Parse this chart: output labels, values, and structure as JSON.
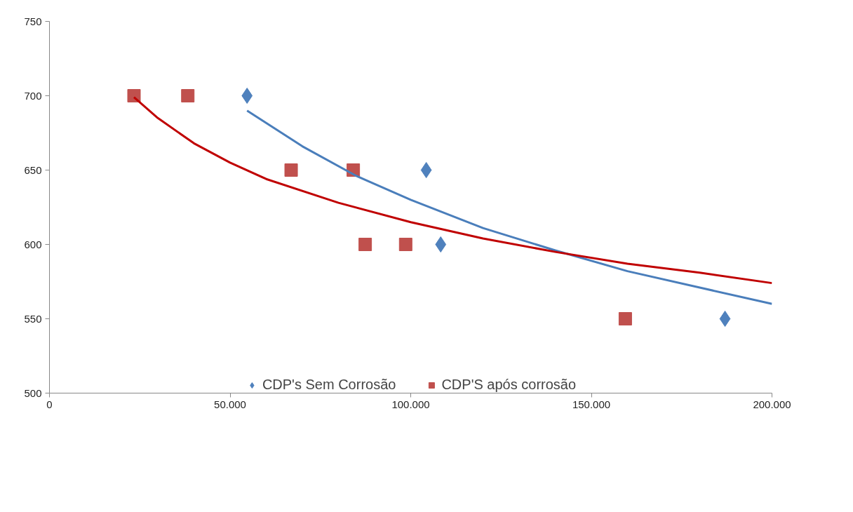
{
  "chart_data": {
    "type": "scatter",
    "xlim": [
      0,
      200000
    ],
    "ylim": [
      500,
      750
    ],
    "xticks": [
      {
        "value": 0,
        "label": "0"
      },
      {
        "value": 50000,
        "label": "50.000"
      },
      {
        "value": 100000,
        "label": "100.000"
      },
      {
        "value": 150000,
        "label": "150.000"
      },
      {
        "value": 200000,
        "label": "200.000"
      }
    ],
    "yticks": [
      500,
      550,
      600,
      650,
      700,
      750
    ],
    "grid": false,
    "legend": "bottom",
    "series": [
      {
        "name": "CDP's Sem Corrosão",
        "marker": "diamond",
        "color": "#4f81bd",
        "x": [
          54700,
          104300,
          108300,
          187000
        ],
        "values": [
          700,
          650,
          600,
          550
        ]
      },
      {
        "name": "CDP'S após corrosão",
        "marker": "square",
        "color": "#c0504d",
        "x": [
          23400,
          38300,
          66900,
          84100,
          87400,
          98600,
          159400
        ],
        "values": [
          700,
          700,
          650,
          650,
          600,
          600,
          550
        ]
      },
      {
        "type": "line",
        "color": "#4a7ebb",
        "x": [
          54700,
          70000,
          85000,
          100000,
          120000,
          140000,
          160000,
          180000,
          200000
        ],
        "values": [
          690,
          666,
          646,
          630,
          611,
          596,
          582,
          571,
          560
        ]
      },
      {
        "type": "line",
        "color": "#c00000",
        "x": [
          23400,
          30000,
          40000,
          50000,
          60000,
          80000,
          100000,
          120000,
          140000,
          160000,
          180000,
          200000
        ],
        "values": [
          699,
          685,
          668,
          655,
          644,
          628,
          615,
          604,
          595,
          587,
          581,
          574
        ]
      }
    ]
  }
}
